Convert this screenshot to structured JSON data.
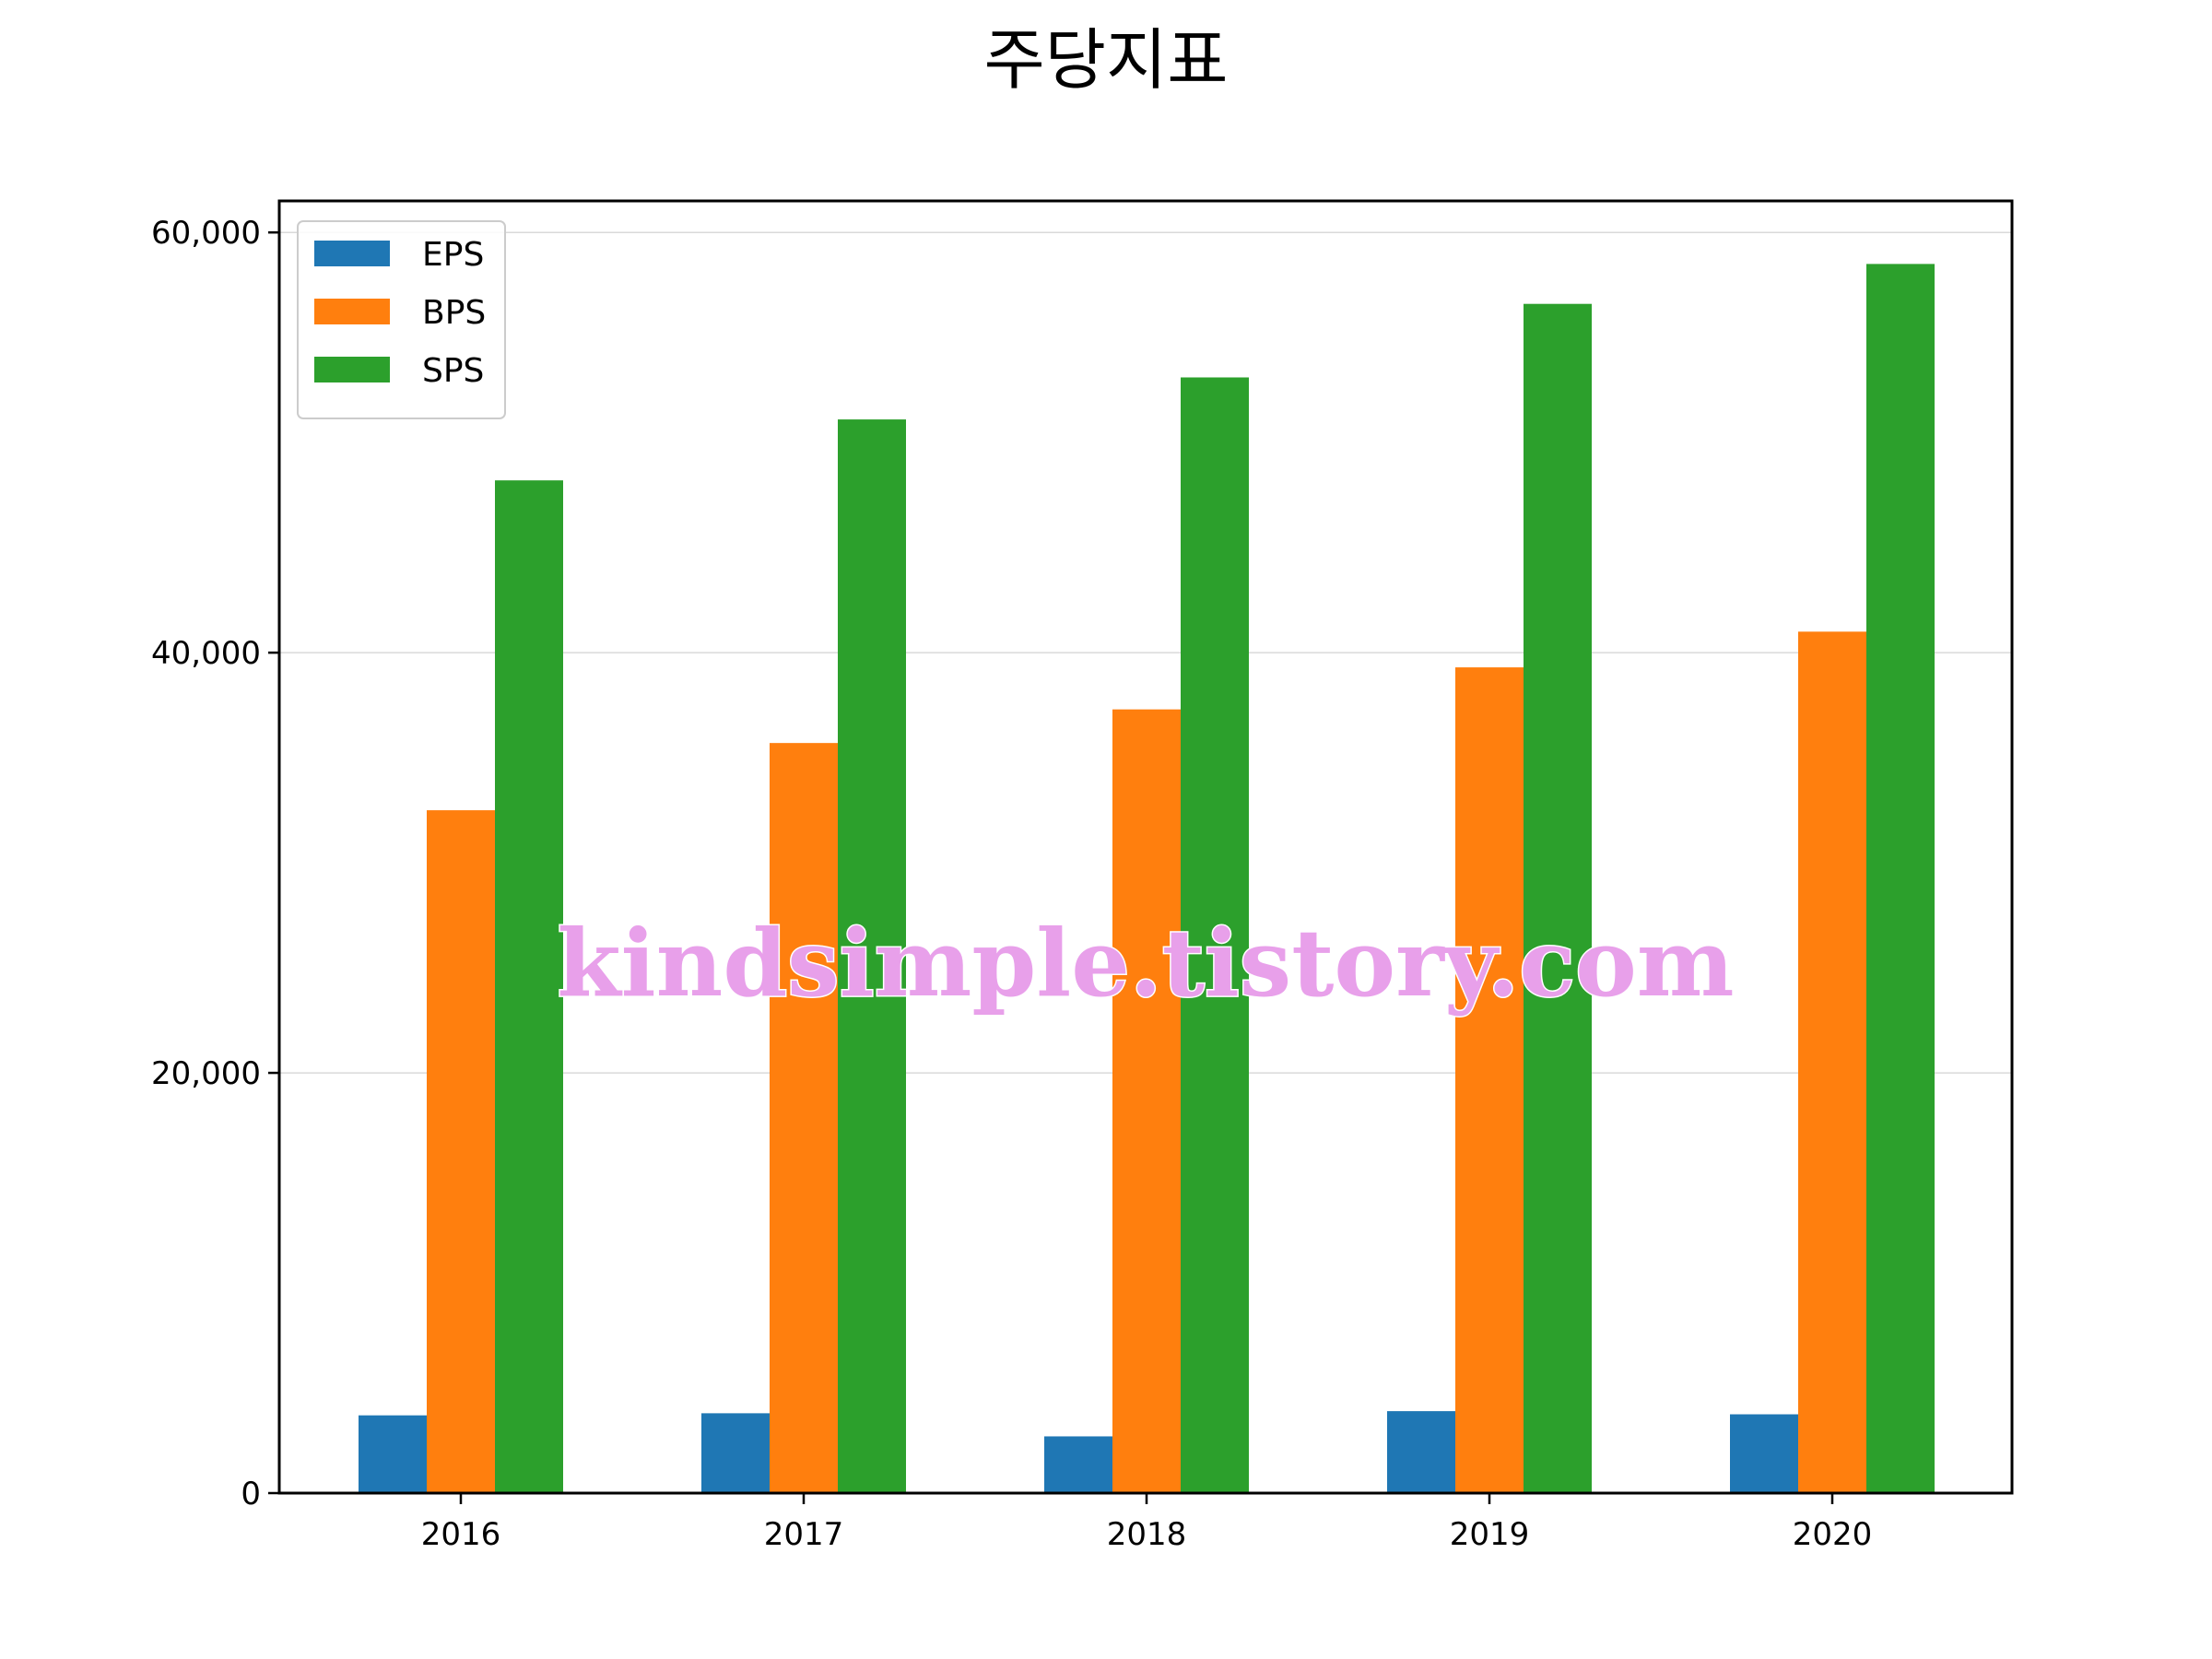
{
  "chart_data": {
    "type": "bar",
    "title": "주당지표",
    "xlabel": "",
    "ylabel": "",
    "categories": [
      "2016",
      "2017",
      "2018",
      "2019",
      "2020"
    ],
    "series": [
      {
        "name": "EPS",
        "color": "#1f77b4",
        "values": [
          3700,
          3800,
          2700,
          3900,
          3750
        ]
      },
      {
        "name": "BPS",
        "color": "#ff7f0e",
        "values": [
          32500,
          35700,
          37300,
          39300,
          41000
        ]
      },
      {
        "name": "SPS",
        "color": "#2ca02c",
        "values": [
          48200,
          51100,
          53100,
          56600,
          58500
        ]
      }
    ],
    "ylim": [
      0,
      61500
    ],
    "yticks": [
      0,
      20000,
      40000,
      60000
    ],
    "ytick_labels": [
      "0",
      "20,000",
      "40,000",
      "60,000"
    ],
    "grid": {
      "y": true,
      "x": false
    },
    "legend_position": "top-left"
  },
  "watermark": "kindsimple.tistory.com"
}
